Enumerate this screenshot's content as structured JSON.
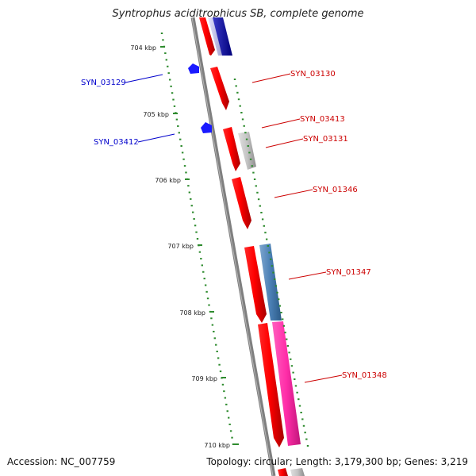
{
  "title": "Syntrophus aciditrophicus SB, complete genome",
  "footer": {
    "accession": "Accession: NC_007759",
    "summary": "Topology: circular; Length: 3,179,300 bp; Genes: 3,219"
  },
  "colors": {
    "backbone": "#7f7f7f",
    "tick": "#2e8b2e",
    "reverse_strand": "#1a1aff",
    "forward_strand": "#ff0000",
    "label_forward": "#cc0000",
    "label_reverse": "#0000cc"
  },
  "scale_labels": [
    "704 kbp",
    "705 kbp",
    "706 kbp",
    "707 kbp",
    "708 kbp",
    "709 kbp",
    "710 kbp"
  ],
  "gene_labels": [
    {
      "name": "SYN_03129",
      "strand": "reverse"
    },
    {
      "name": "SYN_03130",
      "strand": "forward"
    },
    {
      "name": "SYN_03413",
      "strand": "forward"
    },
    {
      "name": "SYN_03412",
      "strand": "reverse"
    },
    {
      "name": "SYN_03131",
      "strand": "forward"
    },
    {
      "name": "SYN_01346",
      "strand": "forward"
    },
    {
      "name": "SYN_01347",
      "strand": "forward"
    },
    {
      "name": "SYN_01348",
      "strand": "forward"
    }
  ]
}
